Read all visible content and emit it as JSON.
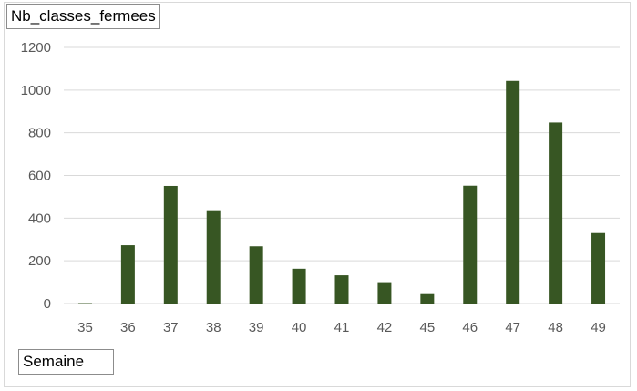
{
  "chart_data": {
    "type": "bar",
    "title": "Nb_classes_fermees",
    "xlabel": "Semaine",
    "ylabel": "",
    "categories": [
      "35",
      "36",
      "37",
      "38",
      "39",
      "40",
      "41",
      "42",
      "45",
      "46",
      "47",
      "48",
      "49"
    ],
    "values": [
      2,
      273,
      551,
      437,
      268,
      163,
      132,
      100,
      44,
      552,
      1043,
      848,
      330
    ],
    "ylim": [
      0,
      1200
    ],
    "yticks": [
      "0",
      "200",
      "400",
      "600",
      "800",
      "1000",
      "1200"
    ],
    "grid": true,
    "legend": "none",
    "bar_color": "#375623",
    "grid_color": "#d9d9d9"
  }
}
